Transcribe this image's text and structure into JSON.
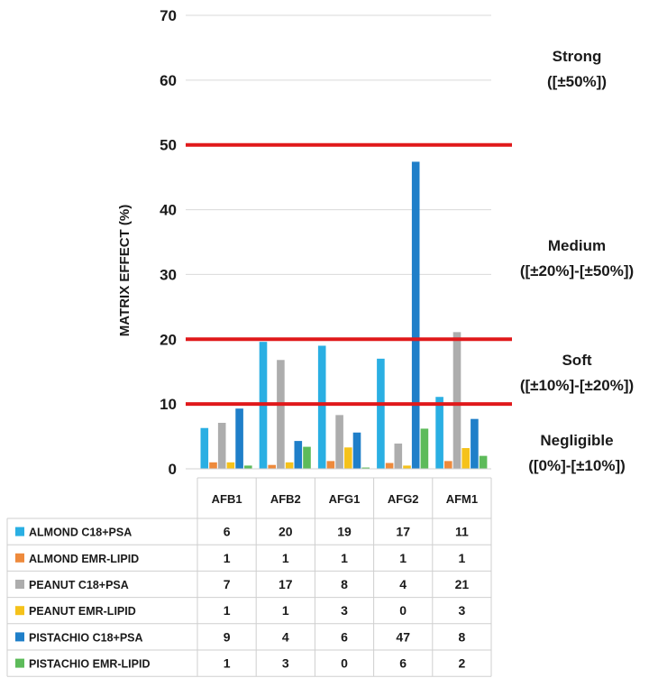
{
  "chart_data": {
    "type": "bar",
    "ylabel": "MATRIX EFFECT (%)",
    "ylim": [
      0,
      70
    ],
    "yticks": [
      0,
      10,
      20,
      30,
      40,
      50,
      60,
      70
    ],
    "grid": true,
    "categories": [
      "AFB1",
      "AFB2",
      "AFG1",
      "AFG2",
      "AFM1"
    ],
    "series": [
      {
        "name": "ALMOND C18+PSA",
        "color": "#2AAFE3",
        "values": [
          6.3,
          19.6,
          19.0,
          17.0,
          11.1
        ],
        "labels": [
          "6",
          "20",
          "19",
          "17",
          "11"
        ]
      },
      {
        "name": "ALMOND EMR-LIPID",
        "color": "#EE8A3C",
        "values": [
          1.0,
          0.6,
          1.2,
          0.9,
          1.2
        ],
        "labels": [
          "1",
          "1",
          "1",
          "1",
          "1"
        ]
      },
      {
        "name": "PEANUT C18+PSA",
        "color": "#ADADAD",
        "values": [
          7.1,
          16.8,
          8.3,
          3.9,
          21.1
        ],
        "labels": [
          "7",
          "17",
          "8",
          "4",
          "21"
        ]
      },
      {
        "name": "PEANUT EMR-LIPID",
        "color": "#F5C21B",
        "values": [
          1.0,
          1.0,
          3.3,
          0.5,
          3.2
        ],
        "labels": [
          "1",
          "1",
          "3",
          "0",
          "3"
        ]
      },
      {
        "name": "PISTACHIO C18+PSA",
        "color": "#1F7FC9",
        "values": [
          9.3,
          4.3,
          5.6,
          47.4,
          7.7
        ],
        "labels": [
          "9",
          "4",
          "6",
          "47",
          "8"
        ]
      },
      {
        "name": "PISTACHIO EMR-LIPID",
        "color": "#5DBB5A",
        "values": [
          0.5,
          3.4,
          0.2,
          6.2,
          2.0
        ],
        "labels": [
          "1",
          "3",
          "0",
          "6",
          "2"
        ]
      }
    ],
    "thresholds": [
      {
        "value": 50,
        "color": "#E0191B"
      },
      {
        "value": 20,
        "color": "#E0191B"
      },
      {
        "value": 10,
        "color": "#E0191B"
      }
    ],
    "zones": [
      {
        "name": "Strong",
        "range": "([±50%])",
        "at": 65
      },
      {
        "name": "Medium",
        "range": "([±20%]-[±50%])",
        "at": 33
      },
      {
        "name": "Soft",
        "range": "([±10%]-[±20%])",
        "at": 16
      },
      {
        "name": "Negligible",
        "range": "([0%]-[±10%])",
        "at": 5
      }
    ]
  }
}
